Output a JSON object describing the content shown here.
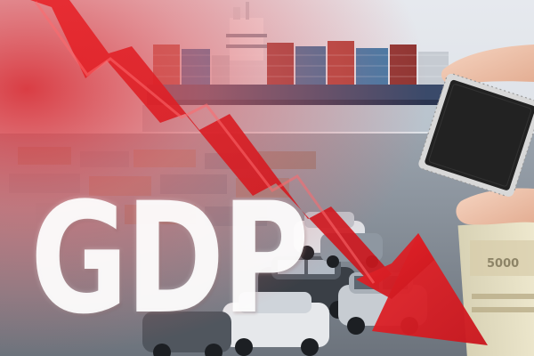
{
  "image": {
    "headline_text": "GDP",
    "banknote_text": "5000",
    "trend": "downward",
    "colors": {
      "arrow_red": "#e0262b",
      "arrow_dark": "#b5161c",
      "haze_red": "#d9484e",
      "sky": "#dfe5ea",
      "ship_hull": "#3a4a6a",
      "chip": "#222222",
      "hand_skin": "#f2c8b0"
    },
    "icons": [
      "cargo-ship",
      "shipping-containers",
      "parked-cars",
      "microchip",
      "hand",
      "banknotes",
      "down-arrow"
    ]
  }
}
